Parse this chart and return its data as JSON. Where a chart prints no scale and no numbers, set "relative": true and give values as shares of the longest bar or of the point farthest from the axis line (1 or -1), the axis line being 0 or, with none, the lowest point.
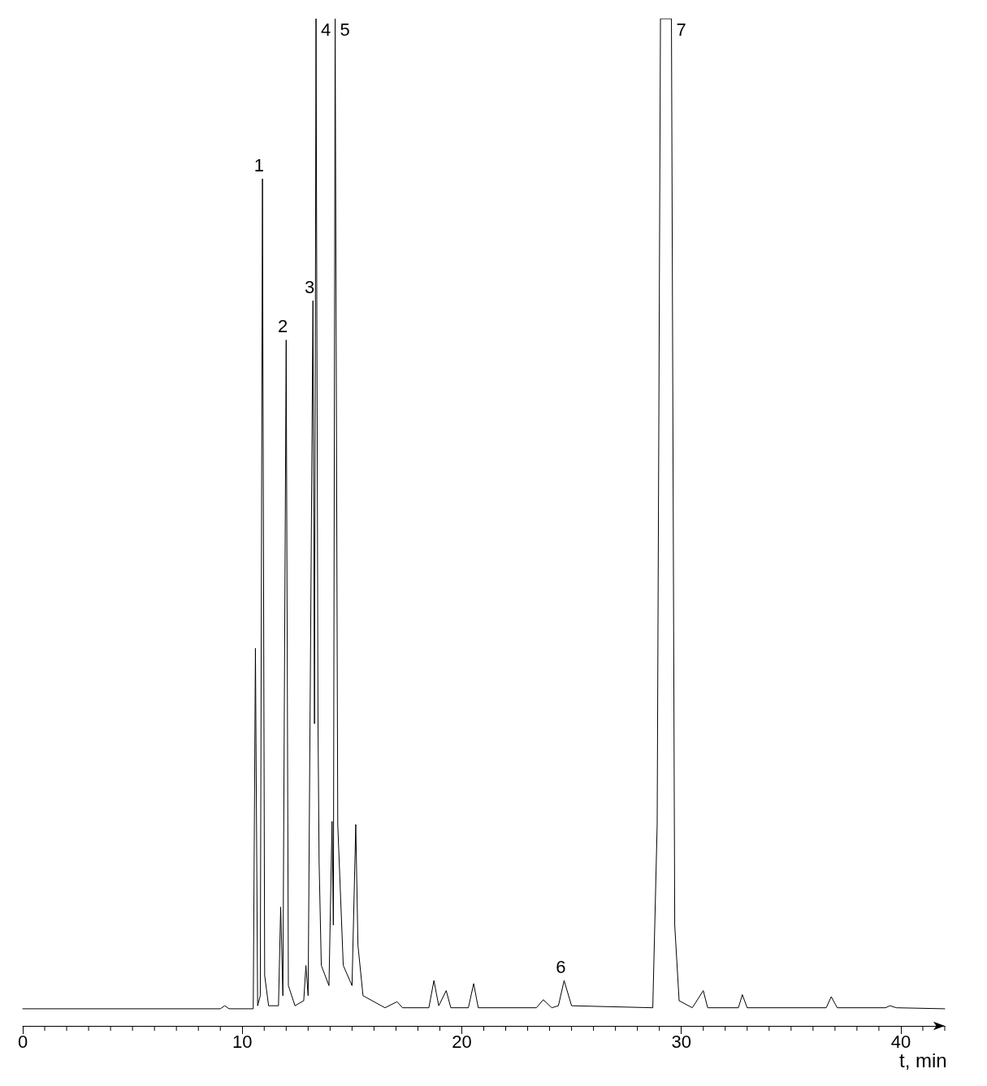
{
  "chart_data": {
    "type": "line",
    "relative": true,
    "xlabel": "t, min",
    "xlim": [
      0,
      42
    ],
    "xticks": [
      0,
      10,
      20,
      30,
      40
    ],
    "grid": false,
    "marker": "none",
    "line_style": "solid",
    "series": [
      {
        "color": "#000000",
        "x": [
          0,
          9.0,
          9.2,
          9.4,
          10.5,
          10.6,
          10.7,
          10.82,
          10.92,
          11.02,
          11.2,
          11.65,
          11.75,
          11.85,
          12.0,
          12.1,
          12.4,
          12.8,
          12.9,
          13.0,
          13.22,
          13.29,
          13.36,
          13.45,
          13.5,
          13.6,
          13.95,
          14.09,
          14.15,
          14.23,
          14.35,
          14.6,
          15.0,
          15.17,
          15.27,
          15.5,
          16.5,
          17.05,
          17.3,
          18.5,
          18.73,
          18.95,
          19.29,
          19.5,
          20.3,
          20.54,
          20.75,
          23.4,
          23.71,
          24.1,
          24.4,
          24.66,
          25.0,
          28.7,
          28.9,
          29.05,
          29.55,
          29.7,
          29.9,
          30.5,
          31.0,
          31.2,
          32.6,
          32.78,
          33.0,
          36.6,
          36.83,
          37.1,
          39.3,
          39.5,
          39.8,
          42
        ],
        "values": [
          0.017,
          0.017,
          0.02,
          0.017,
          0.017,
          0.375,
          0.02,
          0.03,
          0.841,
          0.05,
          0.02,
          0.02,
          0.118,
          0.03,
          0.681,
          0.04,
          0.02,
          0.025,
          0.06,
          0.03,
          0.72,
          0.3,
          1.0,
          0.3,
          0.163,
          0.06,
          0.04,
          0.203,
          0.1,
          1.0,
          0.2,
          0.06,
          0.04,
          0.2,
          0.08,
          0.03,
          0.018,
          0.024,
          0.018,
          0.018,
          0.045,
          0.02,
          0.035,
          0.018,
          0.018,
          0.042,
          0.018,
          0.018,
          0.026,
          0.018,
          0.02,
          0.045,
          0.02,
          0.018,
          0.2,
          1.0,
          1.0,
          0.1,
          0.025,
          0.018,
          0.035,
          0.018,
          0.018,
          0.031,
          0.018,
          0.018,
          0.029,
          0.018,
          0.018,
          0.02,
          0.018,
          0.017
        ]
      }
    ],
    "annotations": [
      {
        "text": "1",
        "x": 10.92,
        "y": 0.841
      },
      {
        "text": "2",
        "x": 12.0,
        "y": 0.681
      },
      {
        "text": "3",
        "x": 13.22,
        "y": 0.72
      },
      {
        "text": "4",
        "x": 13.36,
        "y": 1.0
      },
      {
        "text": "5",
        "x": 14.23,
        "y": 1.0
      },
      {
        "text": "6",
        "x": 24.66,
        "y": 0.045
      },
      {
        "text": "7",
        "x": 29.55,
        "y": 1.0
      }
    ]
  }
}
